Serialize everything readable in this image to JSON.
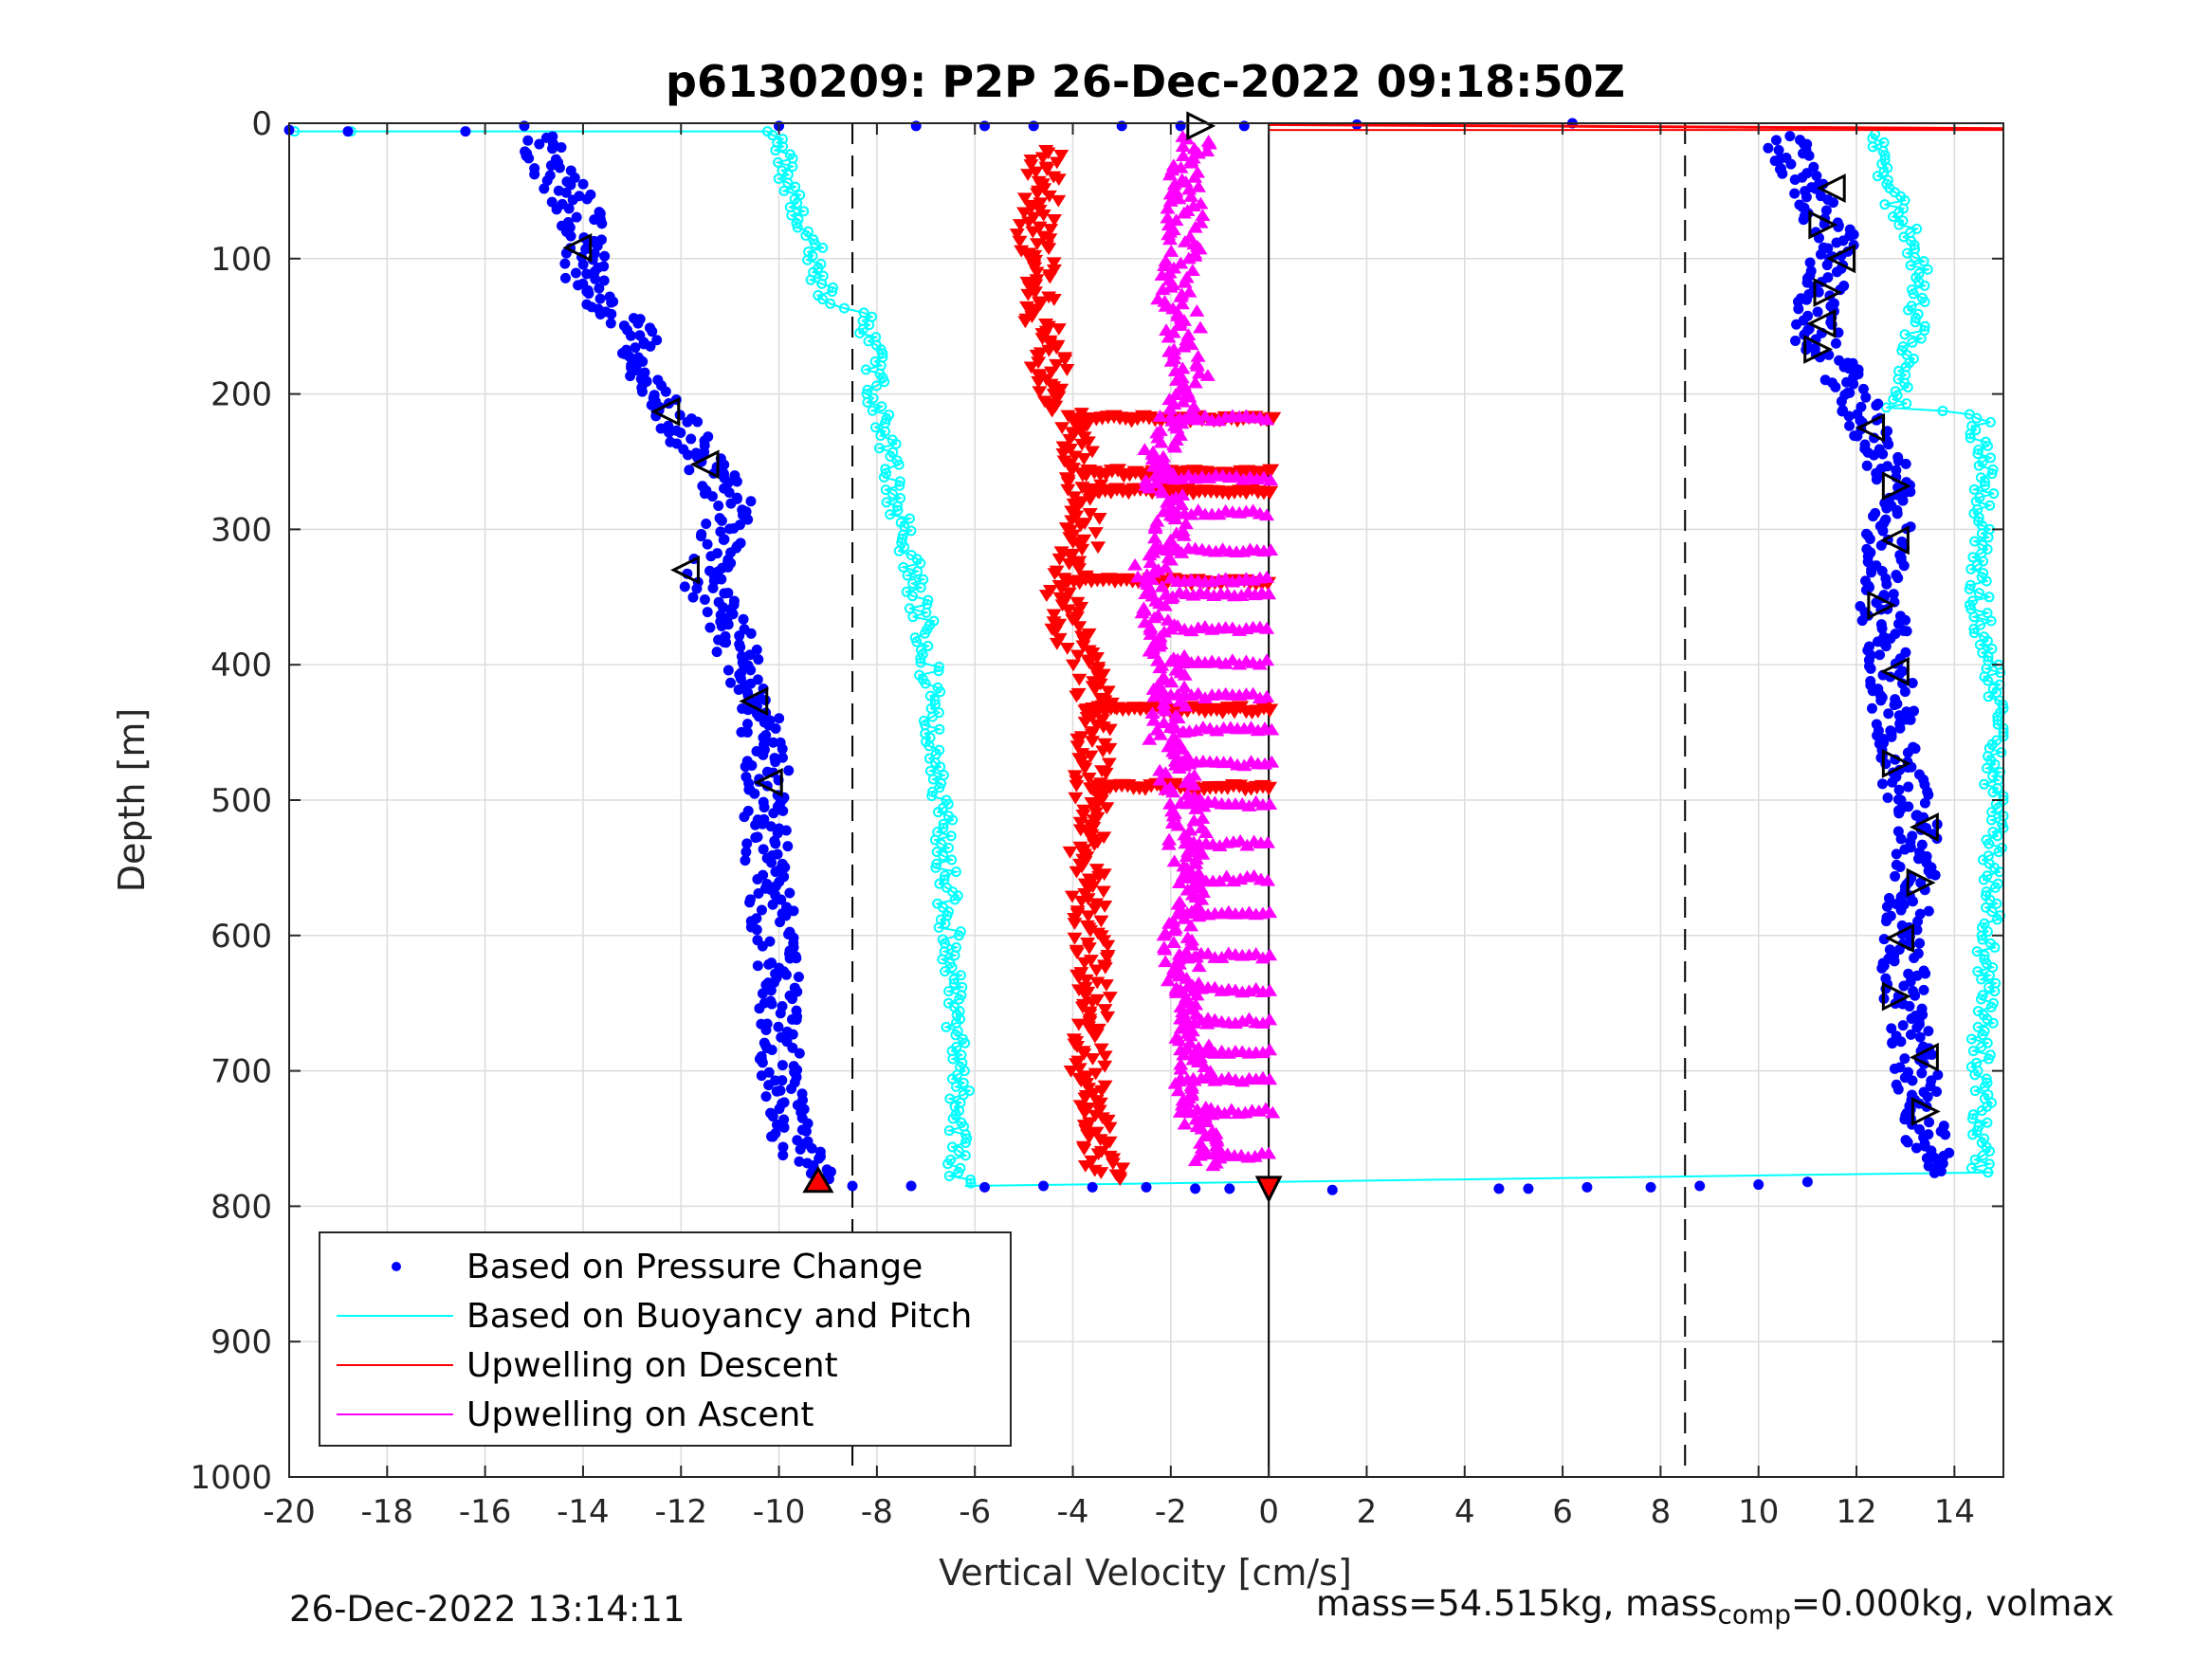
{
  "chart_data": {
    "type": "scatter",
    "title": "p6130209: P2P 26-Dec-2022 09:18:50Z",
    "xlabel": "Vertical Velocity [cm/s]",
    "ylabel": "Depth [m]",
    "xlim": [
      -20,
      15
    ],
    "ylim": [
      0,
      1000
    ],
    "y_reversed": true,
    "xticks": [
      -20,
      -18,
      -16,
      -14,
      -12,
      -10,
      -8,
      -6,
      -4,
      -2,
      0,
      2,
      4,
      6,
      8,
      10,
      12,
      14
    ],
    "yticks": [
      0,
      100,
      200,
      300,
      400,
      500,
      600,
      700,
      800,
      900,
      1000
    ],
    "grid": true,
    "legend_position": "bottom-left",
    "reference_lines": {
      "dashed_x": [
        -8.5,
        8.5
      ],
      "solid_x": [
        0
      ]
    },
    "series": [
      {
        "name": "Based on Pressure Change",
        "color": "#0000ff",
        "marker": "dot",
        "descent": [
          [
            -15,
            10
          ],
          [
            -14.5,
            40
          ],
          [
            -14,
            70
          ],
          [
            -14,
            95
          ],
          [
            -14,
            120
          ],
          [
            -13,
            150
          ],
          [
            -12.8,
            180
          ],
          [
            -12.2,
            215
          ],
          [
            -11.5,
            250
          ],
          [
            -11,
            280
          ],
          [
            -11.2,
            310
          ],
          [
            -11.5,
            340
          ],
          [
            -11,
            370
          ],
          [
            -10.8,
            400
          ],
          [
            -10.5,
            430
          ],
          [
            -10.3,
            460
          ],
          [
            -10.2,
            490
          ],
          [
            -10.3,
            520
          ],
          [
            -10.2,
            560
          ],
          [
            -10.1,
            600
          ],
          [
            -10,
            650
          ],
          [
            -10,
            700
          ],
          [
            -9.8,
            740
          ],
          [
            -9.5,
            770
          ],
          [
            -9.2,
            780
          ]
        ],
        "ascent": [
          [
            13.5,
            775
          ],
          [
            13.4,
            740
          ],
          [
            13.2,
            700
          ],
          [
            13.0,
            650
          ],
          [
            12.9,
            600
          ],
          [
            13.2,
            560
          ],
          [
            13.3,
            520
          ],
          [
            12.8,
            470
          ],
          [
            12.7,
            400
          ],
          [
            12.5,
            355
          ],
          [
            12.6,
            310
          ],
          [
            12.8,
            270
          ],
          [
            12.3,
            230
          ],
          [
            12.0,
            200
          ],
          [
            11.2,
            165
          ],
          [
            11.2,
            140
          ],
          [
            11.4,
            110
          ],
          [
            11.6,
            90
          ],
          [
            11.2,
            60
          ],
          [
            10.8,
            30
          ],
          [
            10.5,
            10
          ]
        ],
        "surface": [
          [
            -20,
            5
          ],
          [
            -18.8,
            6
          ],
          [
            -16.4,
            6
          ],
          [
            -15.2,
            2
          ],
          [
            -10,
            2
          ],
          [
            -7.2,
            2
          ],
          [
            -5.8,
            2
          ],
          [
            -4.8,
            2
          ],
          [
            -3,
            2
          ],
          [
            -1.8,
            2
          ],
          [
            -0.5,
            2
          ],
          [
            1.8,
            1
          ],
          [
            6.2,
            0
          ],
          [
            -8.5,
            785
          ],
          [
            -7.3,
            785
          ],
          [
            -5.8,
            786
          ],
          [
            -4.6,
            785
          ],
          [
            -3.6,
            786
          ],
          [
            -2.5,
            786
          ],
          [
            -1.5,
            787
          ],
          [
            -0.8,
            787
          ],
          [
            1.3,
            788
          ],
          [
            4.7,
            787
          ],
          [
            5.3,
            787
          ],
          [
            6.5,
            786
          ],
          [
            7.8,
            786
          ],
          [
            8.8,
            785
          ],
          [
            10.0,
            784
          ],
          [
            11.0,
            782
          ]
        ]
      },
      {
        "name": "Based on Buoyancy and Pitch",
        "color": "#00ffff",
        "marker": "line",
        "descent": [
          [
            -20,
            6
          ],
          [
            -18.8,
            6
          ],
          [
            -10.2,
            6
          ],
          [
            -10.0,
            20
          ],
          [
            -9.7,
            50
          ],
          [
            -9.4,
            80
          ],
          [
            -9.2,
            110
          ],
          [
            -9.0,
            130
          ],
          [
            -8.3,
            140
          ],
          [
            -8.1,
            170
          ],
          [
            -8.0,
            200
          ],
          [
            -7.8,
            240
          ],
          [
            -7.6,
            280
          ],
          [
            -7.4,
            310
          ],
          [
            -7.2,
            340
          ],
          [
            -7.0,
            380
          ],
          [
            -6.9,
            420
          ],
          [
            -6.8,
            460
          ],
          [
            -6.7,
            500
          ],
          [
            -6.6,
            550
          ],
          [
            -6.5,
            600
          ],
          [
            -6.4,
            650
          ],
          [
            -6.3,
            700
          ],
          [
            -6.3,
            750
          ],
          [
            -6.4,
            775
          ],
          [
            -6.2,
            783
          ]
        ],
        "ascent": [
          [
            14.5,
            775
          ],
          [
            14.6,
            750
          ],
          [
            14.5,
            700
          ],
          [
            14.6,
            650
          ],
          [
            14.7,
            600
          ],
          [
            14.8,
            550
          ],
          [
            14.8,
            500
          ],
          [
            14.9,
            450
          ],
          [
            14.7,
            400
          ],
          [
            14.5,
            350
          ],
          [
            14.6,
            300
          ],
          [
            14.6,
            250
          ],
          [
            14.5,
            215
          ],
          [
            12.8,
            210
          ],
          [
            13.0,
            180
          ],
          [
            13.2,
            150
          ],
          [
            13.3,
            120
          ],
          [
            13.2,
            90
          ],
          [
            12.8,
            60
          ],
          [
            12.5,
            30
          ],
          [
            12.4,
            8
          ]
        ],
        "bottom_line": [
          [
            -6.2,
            785
          ],
          [
            14.8,
            775
          ]
        ]
      },
      {
        "name": "Upwelling on Descent",
        "color": "#ff0000",
        "marker": "triangle-down",
        "points": [
          [
            -4.5,
            20
          ],
          [
            -4.6,
            50
          ],
          [
            -4.8,
            80
          ],
          [
            -4.7,
            110
          ],
          [
            -4.6,
            150
          ],
          [
            -4.5,
            180
          ],
          [
            -4.3,
            200
          ],
          [
            -4.0,
            230
          ],
          [
            -3.8,
            260
          ],
          [
            -3.7,
            290
          ],
          [
            -3.9,
            320
          ],
          [
            -4.2,
            345
          ],
          [
            -4.1,
            370
          ],
          [
            -3.8,
            400
          ],
          [
            -3.5,
            430
          ],
          [
            -3.6,
            460
          ],
          [
            -3.6,
            500
          ],
          [
            -3.7,
            540
          ],
          [
            -3.7,
            580
          ],
          [
            -3.6,
            620
          ],
          [
            -3.6,
            660
          ],
          [
            -3.7,
            700
          ],
          [
            -3.5,
            740
          ],
          [
            -3.4,
            770
          ],
          [
            -3.0,
            780
          ]
        ],
        "bursts": [
          [
            -4.0,
            218
          ],
          [
            -3.8,
            258
          ],
          [
            -3.7,
            272
          ],
          [
            -4.1,
            338
          ],
          [
            -3.7,
            433
          ],
          [
            -3.6,
            490
          ]
        ]
      },
      {
        "name": "Upwelling on Ascent",
        "color": "#ff00ff",
        "marker": "triangle-up",
        "points": [
          [
            -1.5,
            10
          ],
          [
            -1.8,
            40
          ],
          [
            -1.7,
            70
          ],
          [
            -1.8,
            100
          ],
          [
            -1.9,
            130
          ],
          [
            -1.7,
            160
          ],
          [
            -1.6,
            190
          ],
          [
            -2.0,
            220
          ],
          [
            -2.3,
            250
          ],
          [
            -2.1,
            280
          ],
          [
            -2.0,
            310
          ],
          [
            -2.5,
            330
          ],
          [
            -2.3,
            360
          ],
          [
            -2.1,
            390
          ],
          [
            -2.0,
            420
          ],
          [
            -2.1,
            450
          ],
          [
            -1.9,
            480
          ],
          [
            -1.6,
            510
          ],
          [
            -1.7,
            540
          ],
          [
            -1.5,
            570
          ],
          [
            -1.8,
            600
          ],
          [
            -1.7,
            630
          ],
          [
            -1.6,
            660
          ],
          [
            -1.5,
            690
          ],
          [
            -1.6,
            720
          ],
          [
            -1.3,
            750
          ],
          [
            -1.2,
            770
          ]
        ],
        "bursts": [
          [
            -2.0,
            218
          ],
          [
            -2.2,
            262
          ],
          [
            -2.0,
            288
          ],
          [
            -2.2,
            316
          ],
          [
            -2.0,
            337
          ],
          [
            -2.1,
            348
          ],
          [
            -2.0,
            373
          ],
          [
            -2.0,
            398
          ],
          [
            -2.0,
            423
          ],
          [
            -1.9,
            448
          ],
          [
            -1.9,
            473
          ],
          [
            -1.8,
            503
          ],
          [
            -1.7,
            532
          ],
          [
            -1.7,
            558
          ],
          [
            -1.8,
            583
          ],
          [
            -1.8,
            615
          ],
          [
            -1.8,
            640
          ],
          [
            -1.8,
            663
          ],
          [
            -1.8,
            686
          ],
          [
            -1.8,
            706
          ],
          [
            -1.6,
            730
          ],
          [
            -1.4,
            763
          ]
        ]
      }
    ],
    "markers": {
      "descent": [
        [
          -14.1,
          92
        ],
        [
          -12.3,
          213
        ],
        [
          -11.5,
          252
        ],
        [
          -11.9,
          330
        ],
        [
          -10.5,
          427
        ],
        [
          -10.2,
          487
        ],
        [
          -9.2,
          782
        ]
      ],
      "ascent": [
        [
          -1.4,
          2
        ],
        [
          11.5,
          48
        ],
        [
          11.3,
          75
        ],
        [
          11.7,
          100
        ],
        [
          11.4,
          125
        ],
        [
          11.3,
          148
        ],
        [
          11.2,
          167
        ],
        [
          12.3,
          225
        ],
        [
          12.8,
          268
        ],
        [
          12.8,
          308
        ],
        [
          12.5,
          356
        ],
        [
          12.8,
          405
        ],
        [
          12.8,
          473
        ],
        [
          13.4,
          520
        ],
        [
          13.3,
          561
        ],
        [
          12.9,
          602
        ],
        [
          12.8,
          645
        ],
        [
          13.4,
          690
        ],
        [
          13.4,
          730
        ],
        [
          0.0,
          787
        ]
      ]
    }
  },
  "footer": {
    "timestamp": "26-Dec-2022 13:14:11",
    "meta_left": "mass=54.515kg, mass",
    "meta_sub": "comp",
    "meta_right": "=0.000kg, volmax"
  }
}
